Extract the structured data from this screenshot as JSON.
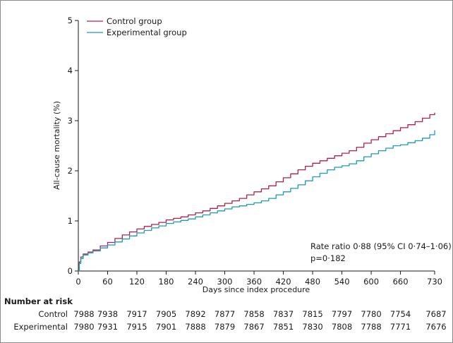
{
  "chart_data": {
    "type": "line",
    "xlabel": "Days since index procedure",
    "ylabel": "All-cause mortality (%)",
    "xlim": [
      0,
      730
    ],
    "ylim": [
      0,
      5
    ],
    "x_ticks": [
      0,
      60,
      120,
      180,
      240,
      300,
      360,
      420,
      480,
      540,
      600,
      660,
      730
    ],
    "y_ticks": [
      0,
      1,
      2,
      3,
      4,
      5
    ],
    "grid": false,
    "legend_position": "top-left",
    "series": [
      {
        "name": "Control group",
        "color": "#b0204f",
        "x": [
          0,
          2,
          5,
          10,
          20,
          30,
          45,
          60,
          75,
          90,
          105,
          120,
          135,
          150,
          165,
          180,
          195,
          210,
          225,
          240,
          255,
          270,
          285,
          300,
          315,
          330,
          345,
          360,
          375,
          390,
          405,
          420,
          435,
          450,
          465,
          480,
          495,
          510,
          525,
          540,
          555,
          570,
          585,
          600,
          615,
          630,
          645,
          660,
          675,
          690,
          705,
          720,
          730
        ],
        "y": [
          0,
          0.18,
          0.28,
          0.34,
          0.38,
          0.42,
          0.5,
          0.57,
          0.65,
          0.72,
          0.78,
          0.84,
          0.89,
          0.93,
          0.97,
          1.02,
          1.05,
          1.08,
          1.12,
          1.16,
          1.2,
          1.25,
          1.3,
          1.35,
          1.4,
          1.45,
          1.52,
          1.58,
          1.64,
          1.7,
          1.78,
          1.86,
          1.94,
          2.02,
          2.09,
          2.15,
          2.2,
          2.25,
          2.3,
          2.35,
          2.4,
          2.47,
          2.55,
          2.62,
          2.68,
          2.74,
          2.8,
          2.86,
          2.92,
          2.98,
          3.05,
          3.12,
          3.16
        ]
      },
      {
        "name": "Experimental group",
        "color": "#1c9ab8",
        "x": [
          0,
          2,
          5,
          10,
          20,
          30,
          45,
          60,
          75,
          90,
          105,
          120,
          135,
          150,
          165,
          180,
          195,
          210,
          225,
          240,
          255,
          270,
          285,
          300,
          315,
          330,
          345,
          360,
          375,
          390,
          405,
          420,
          435,
          450,
          465,
          480,
          495,
          510,
          525,
          540,
          555,
          570,
          585,
          600,
          615,
          630,
          645,
          660,
          675,
          690,
          705,
          720,
          730
        ],
        "y": [
          0,
          0.15,
          0.25,
          0.32,
          0.36,
          0.4,
          0.46,
          0.52,
          0.58,
          0.64,
          0.7,
          0.76,
          0.81,
          0.86,
          0.9,
          0.95,
          0.98,
          1.01,
          1.04,
          1.08,
          1.12,
          1.16,
          1.2,
          1.24,
          1.28,
          1.3,
          1.33,
          1.36,
          1.4,
          1.45,
          1.52,
          1.58,
          1.65,
          1.72,
          1.8,
          1.88,
          1.95,
          2.02,
          2.07,
          2.1,
          2.14,
          2.2,
          2.28,
          2.34,
          2.4,
          2.45,
          2.5,
          2.52,
          2.56,
          2.6,
          2.65,
          2.72,
          2.81
        ]
      }
    ],
    "annotations": [
      "Rate ratio 0·88 (95% CI 0·74–1·06)",
      "p=0·182"
    ],
    "risk_table": {
      "title": "Number at risk",
      "time_points": [
        0,
        60,
        120,
        180,
        240,
        300,
        360,
        420,
        480,
        540,
        600,
        660,
        730
      ],
      "rows": [
        {
          "label": "Control",
          "values": [
            "7988",
            "7938",
            "7917",
            "7905",
            "7892",
            "7877",
            "7858",
            "7837",
            "7815",
            "7797",
            "7780",
            "7754",
            "7687"
          ]
        },
        {
          "label": "Experimental",
          "values": [
            "7980",
            "7931",
            "7915",
            "7901",
            "7888",
            "7879",
            "7867",
            "7851",
            "7830",
            "7808",
            "7788",
            "7771",
            "7676"
          ]
        }
      ]
    }
  }
}
